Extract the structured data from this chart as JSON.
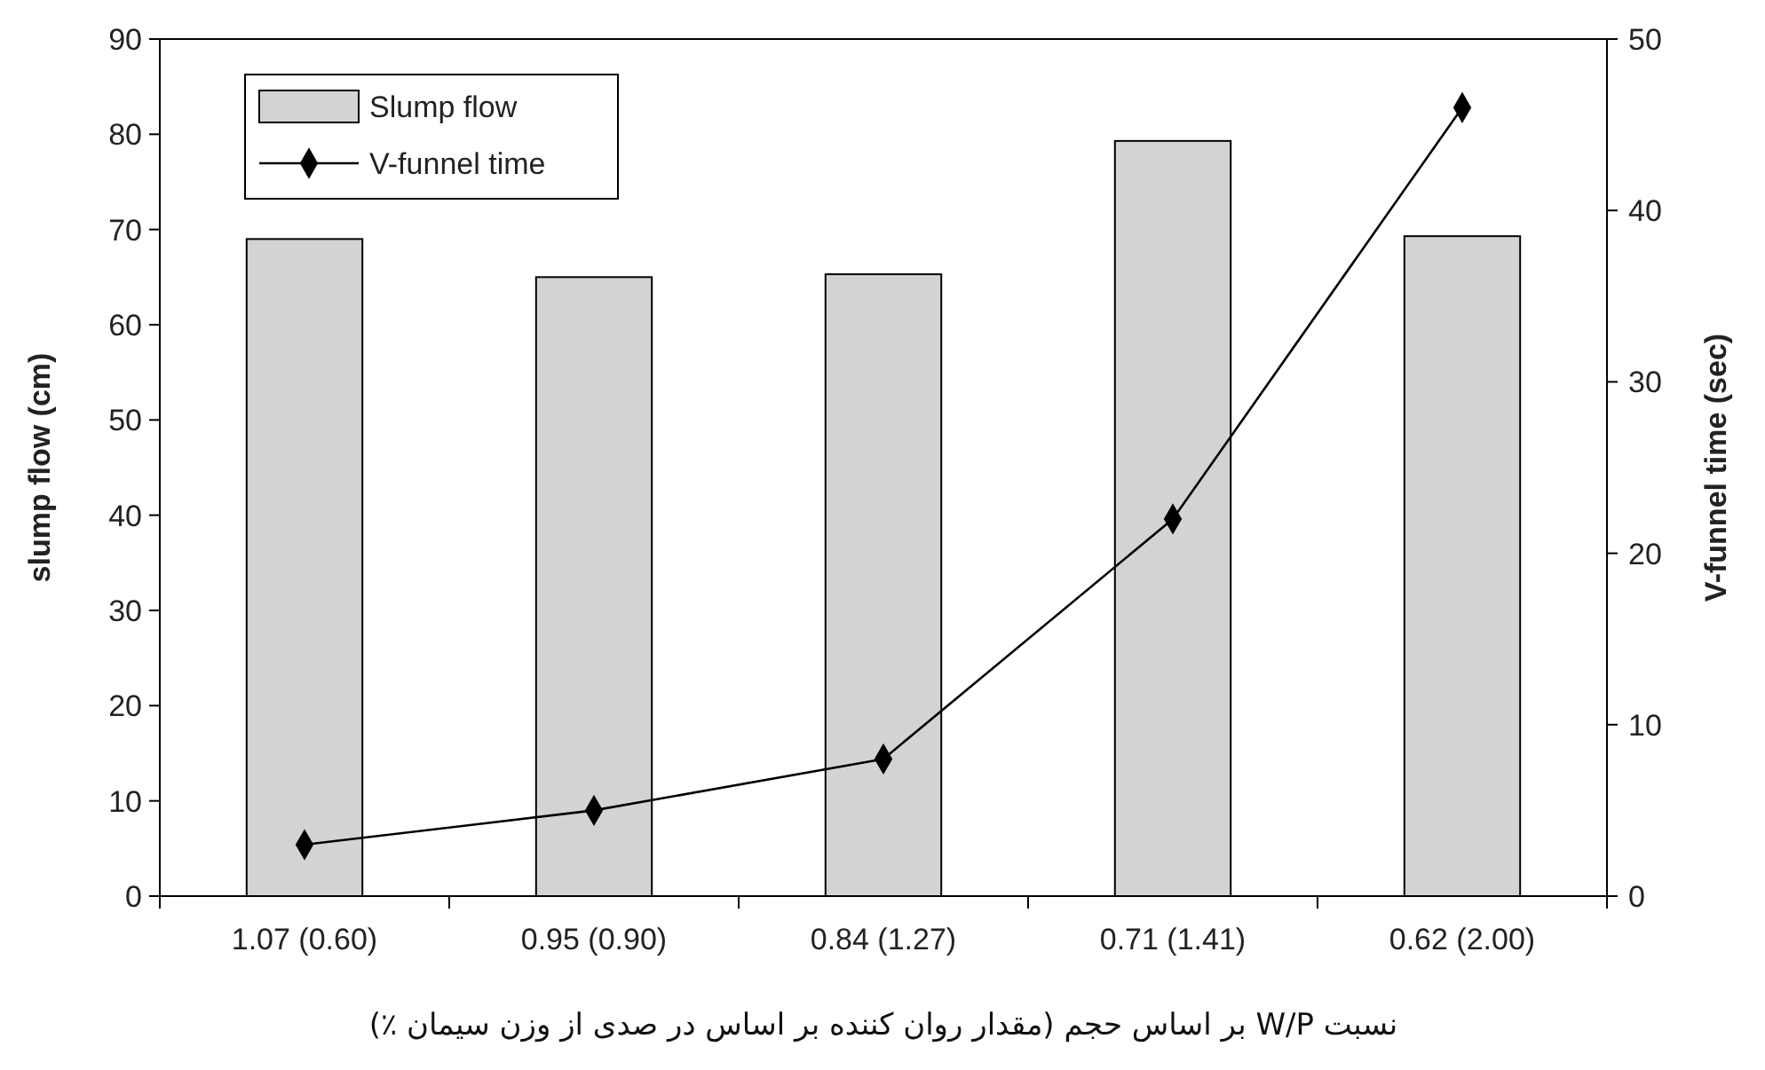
{
  "chart_data": {
    "type": "bar",
    "xlabel": "نسبت W/P بر اساس حجم (مقدار روان کننده بر اساس در صدی از وزن سیمان ٪)",
    "ylabel": "slump flow (cm)",
    "y2label": "V-funnel time (sec)",
    "categories": [
      "1.07 (0.60)",
      "0.95 (0.90)",
      "0.84 (1.27)",
      "0.71 (1.41)",
      "0.62 (2.00)"
    ],
    "series": [
      {
        "name": "Slump flow",
        "color": "#d3d3d5",
        "values": [
          69,
          65,
          65.3,
          79.3,
          69.3
        ]
      },
      {
        "name": "V-funnel time",
        "type": "line",
        "axis": "y2",
        "color": "#000000",
        "marker": "diamond",
        "values": [
          3,
          5,
          8,
          22,
          46
        ]
      }
    ],
    "ylim": [
      0,
      90
    ],
    "yticks": [
      0,
      10,
      20,
      30,
      40,
      50,
      60,
      70,
      80,
      90
    ],
    "y2lim": [
      0,
      50
    ],
    "y2ticks": [
      0,
      10,
      20,
      30,
      40,
      50
    ],
    "legend": "top left",
    "grid": false
  }
}
